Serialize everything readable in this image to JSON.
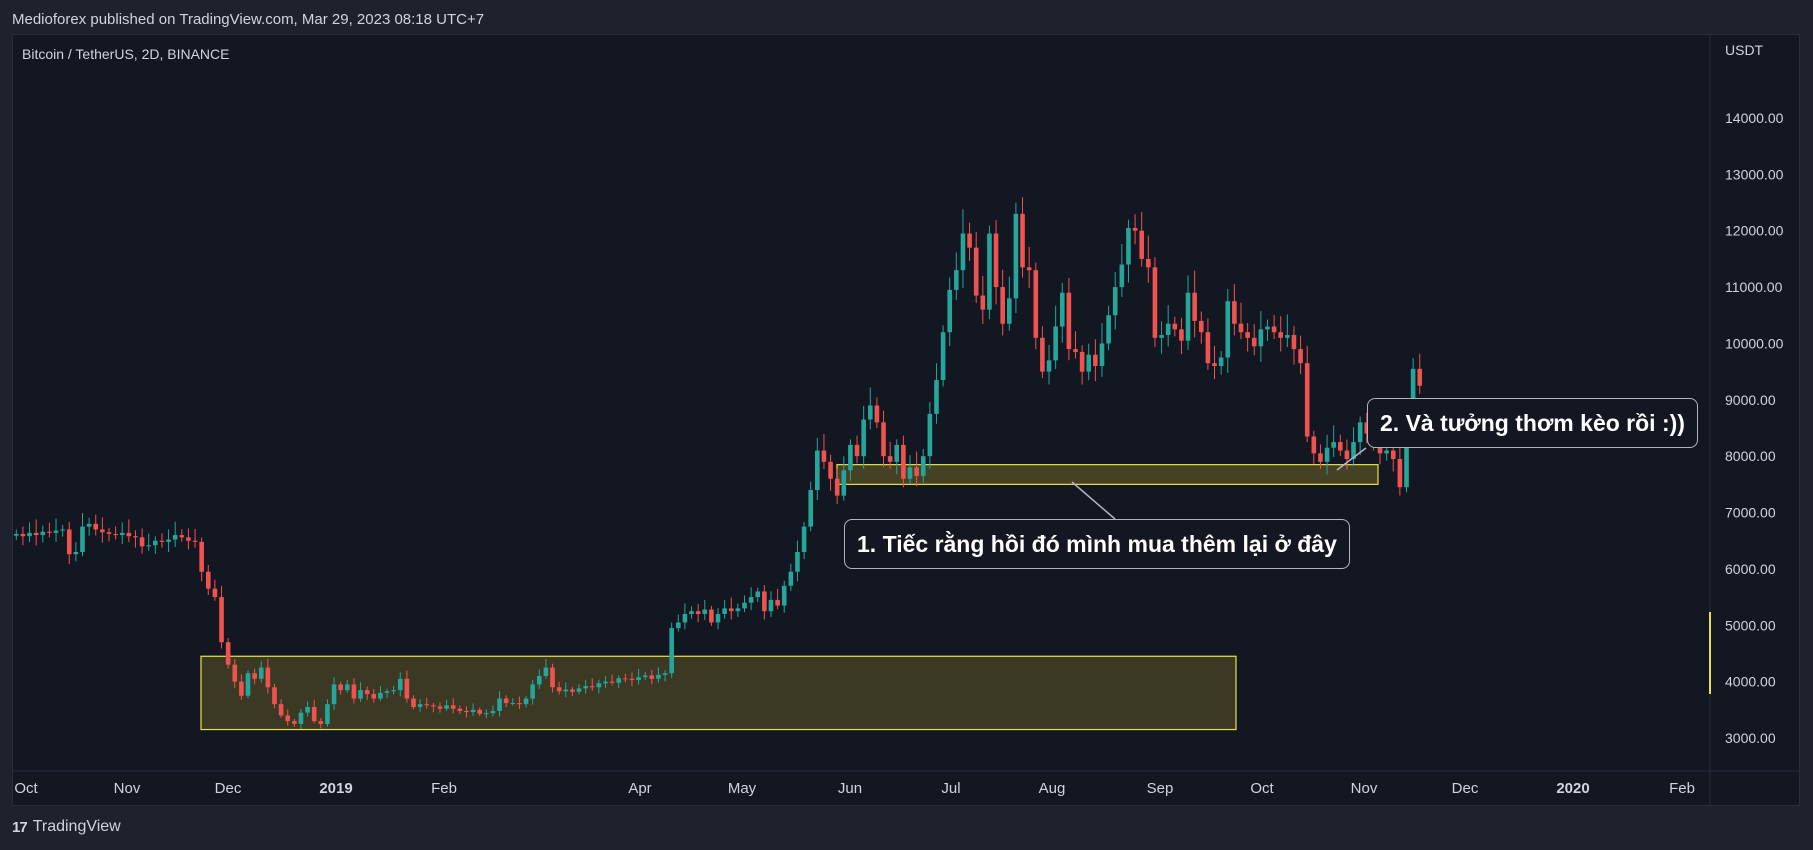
{
  "header": {
    "published": "Medioforex published on TradingView.com, Mar 29, 2023 08:18 UTC+7"
  },
  "symbol_line": "Bitcoin / TetherUS, 2D, BINANCE",
  "footer": {
    "brand": "TradingView"
  },
  "annotations": {
    "callout1": "1. Tiếc rằng hồi đó mình mua thêm lại ở đây",
    "callout2": "2. Và tưởng thơm kèo rồi :))"
  },
  "colors": {
    "up": "#26a69a",
    "down": "#ef5350",
    "zone_fill": "#4a4626",
    "zone_stroke": "#e8e24a"
  },
  "chart_data": {
    "type": "candlestick",
    "currency": "USDT",
    "y_ticks": [
      "3000.00",
      "4000.00",
      "5000.00",
      "6000.00",
      "7000.00",
      "8000.00",
      "9000.00",
      "10000.00",
      "11000.00",
      "12000.00",
      "13000.00",
      "14000.00"
    ],
    "x_ticks": [
      {
        "label": "Oct",
        "bold": false
      },
      {
        "label": "Nov",
        "bold": false
      },
      {
        "label": "Dec",
        "bold": false
      },
      {
        "label": "2019",
        "bold": true
      },
      {
        "label": "Feb",
        "bold": false
      },
      {
        "label": "Apr",
        "bold": false
      },
      {
        "label": "May",
        "bold": false
      },
      {
        "label": "Jun",
        "bold": false
      },
      {
        "label": "Jul",
        "bold": false
      },
      {
        "label": "Aug",
        "bold": false
      },
      {
        "label": "Sep",
        "bold": false
      },
      {
        "label": "Oct",
        "bold": false
      },
      {
        "label": "Nov",
        "bold": false
      },
      {
        "label": "Dec",
        "bold": false
      },
      {
        "label": "2020",
        "bold": true
      },
      {
        "label": "Feb",
        "bold": false
      }
    ],
    "zones": [
      {
        "name": "accumulation-zone",
        "y_low": 3150,
        "y_high": 4450
      },
      {
        "name": "support-zone",
        "y_low": 7500,
        "y_high": 7850
      }
    ],
    "closes": [
      6620,
      6580,
      6640,
      6600,
      6660,
      6640,
      6680,
      6700,
      6260,
      6300,
      6750,
      6800,
      6700,
      6650,
      6620,
      6600,
      6640,
      6580,
      6560,
      6400,
      6420,
      6500,
      6480,
      6520,
      6600,
      6560,
      6500,
      6480,
      5950,
      5650,
      5500,
      4700,
      4300,
      4000,
      3750,
      4150,
      4050,
      4250,
      3900,
      3600,
      3400,
      3300,
      3250,
      3450,
      3550,
      3300,
      3250,
      3600,
      3950,
      3850,
      3950,
      3700,
      3850,
      3780,
      3700,
      3800,
      3830,
      3850,
      4050,
      3700,
      3550,
      3600,
      3580,
      3560,
      3520,
      3580,
      3520,
      3480,
      3460,
      3500,
      3430,
      3440,
      3480,
      3700,
      3620,
      3620,
      3600,
      3700,
      3950,
      4100,
      4250,
      3900,
      3830,
      3860,
      3820,
      3880,
      3920,
      3900,
      3970,
      4000,
      3980,
      4060,
      4050,
      4030,
      4080,
      4110,
      4050,
      4120,
      4150,
      4950,
      5050,
      5200,
      5250,
      5200,
      5280,
      5050,
      5200,
      5300,
      5250,
      5300,
      5400,
      5500,
      5600,
      5250,
      5450,
      5350,
      5700,
      5950,
      6300,
      6750,
      7400,
      8100,
      7900,
      7600,
      7300,
      7750,
      8200,
      8000,
      8650,
      8900,
      8600,
      8000,
      7900,
      8200,
      7600,
      7800,
      7650,
      8000,
      8750,
      9350,
      10200,
      10950,
      11300,
      11950,
      11700,
      10850,
      10600,
      11950,
      11000,
      10350,
      10800,
      12300,
      11350,
      11300,
      10100,
      9500,
      9700,
      10300,
      10900,
      9900,
      9850,
      9500,
      9800,
      9600,
      10000,
      10500,
      11000,
      11400,
      12050,
      12000,
      11500,
      11350,
      10100,
      10150,
      10350,
      10250,
      10050,
      10900,
      10400,
      10200,
      9650,
      9600,
      9750,
      10750,
      10350,
      10200,
      10100,
      9950,
      10250,
      10300,
      10200,
      10100,
      10150,
      9900,
      9650,
      8350,
      8050,
      7900,
      8150,
      8250,
      8100,
      7950,
      8250,
      8600,
      8400,
      8200,
      8050,
      8100,
      7950,
      7450,
      8700,
      9550,
      9250
    ]
  }
}
